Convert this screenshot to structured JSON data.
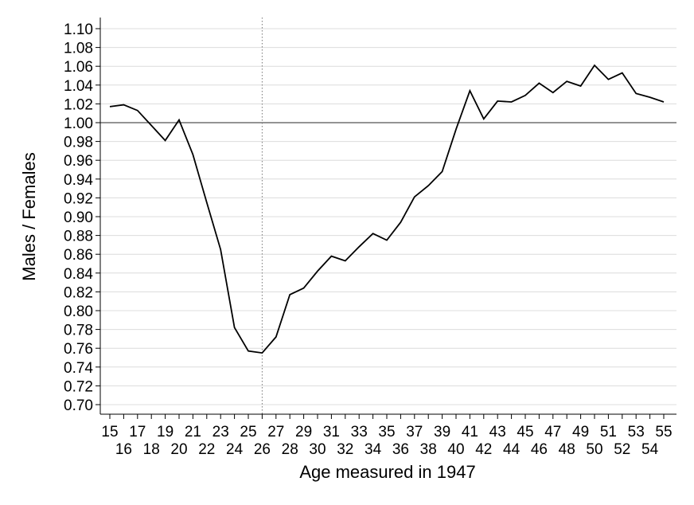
{
  "chart_data": {
    "type": "line",
    "title": "",
    "xlabel": "Age measured in 1947",
    "ylabel": "Males / Females",
    "xlim": [
      15,
      55
    ],
    "ylim": [
      0.7,
      1.1
    ],
    "y_ticks": [
      0.7,
      0.72,
      0.74,
      0.76,
      0.78,
      0.8,
      0.82,
      0.84,
      0.86,
      0.88,
      0.9,
      0.92,
      0.94,
      0.96,
      0.98,
      1.0,
      1.02,
      1.04,
      1.06,
      1.08,
      1.1
    ],
    "y_tick_labels": [
      "0.70",
      "0.72",
      "0.74",
      "0.76",
      "0.78",
      "0.80",
      "0.82",
      "0.84",
      "0.86",
      "0.88",
      "0.90",
      "0.92",
      "0.94",
      "0.96",
      "0.98",
      "1.00",
      "1.02",
      "1.04",
      "1.06",
      "1.08",
      "1.10"
    ],
    "x_tick_labels": [
      "15",
      "16",
      "17",
      "18",
      "19",
      "20",
      "21",
      "22",
      "23",
      "24",
      "25",
      "26",
      "27",
      "28",
      "29",
      "30",
      "31",
      "32",
      "33",
      "34",
      "35",
      "36",
      "37",
      "38",
      "39",
      "40",
      "41",
      "42",
      "43",
      "44",
      "45",
      "46",
      "47",
      "48",
      "49",
      "50",
      "51",
      "52",
      "53",
      "54",
      "55"
    ],
    "grid": true,
    "reference_line_y": 1.0,
    "vertical_reference_x": 26,
    "series": [
      {
        "x": [
          15,
          16,
          17,
          18,
          19,
          20,
          21,
          22,
          23,
          24,
          25,
          26,
          27,
          28,
          29,
          30,
          31,
          32,
          33,
          34,
          35,
          36,
          37,
          38,
          39,
          40,
          41,
          42,
          43,
          44,
          45,
          46,
          47,
          48,
          49,
          50,
          51,
          52,
          53,
          54,
          55
        ],
        "values": [
          1.017,
          1.019,
          1.013,
          0.997,
          0.981,
          1.003,
          0.966,
          0.915,
          0.865,
          0.782,
          0.757,
          0.755,
          0.772,
          0.817,
          0.824,
          0.842,
          0.858,
          0.853,
          0.868,
          0.882,
          0.875,
          0.894,
          0.921,
          0.933,
          0.948,
          0.993,
          1.034,
          1.004,
          1.023,
          1.022,
          1.029,
          1.042,
          1.032,
          1.044,
          1.039,
          1.061,
          1.046,
          1.053,
          1.031,
          1.027,
          1.022
        ],
        "color": "#000000"
      }
    ]
  }
}
